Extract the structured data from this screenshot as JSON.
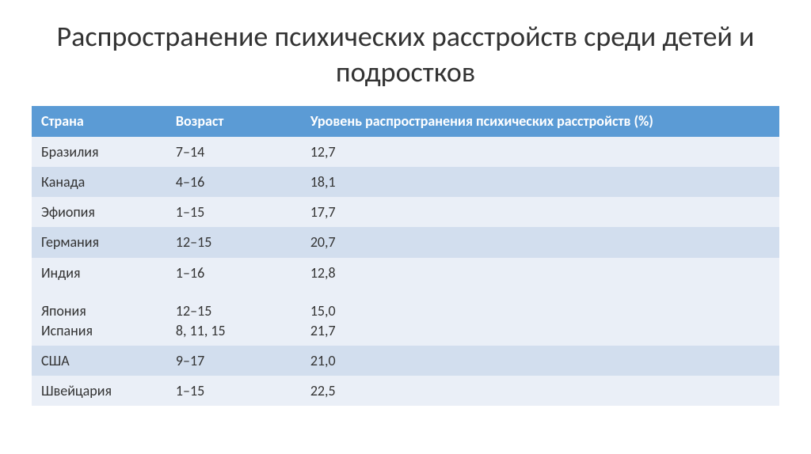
{
  "title": "Распространение психических расстройств среди детей и подростков",
  "table": {
    "header_bg": "#5b9bd5",
    "header_fg": "#ffffff",
    "row_odd_bg": "#eaeff7",
    "row_even_bg": "#d2deee",
    "columns": [
      "Страна",
      "Возраст",
      "Уровень распространения психических расстройств (%)"
    ],
    "rows": [
      {
        "country": "Бразилия",
        "age": "7–14",
        "rate": "12,7"
      },
      {
        "country": "Канада",
        "age": "4–16",
        "rate": "18,1"
      },
      {
        "country": "Эфиопия",
        "age": "1–15",
        "rate": "17,7"
      },
      {
        "country": "Германия",
        "age": "12–15",
        "rate": "20,7"
      },
      {
        "country": "Индия\n\nЯпония\nИспания",
        "age": "1–16\n\n12–15\n8, 11, 15",
        "rate": "12,8\n\n15,0\n21,7"
      },
      {
        "country": "США",
        "age": "9–17",
        "rate": "21,0"
      },
      {
        "country": "Швейцария",
        "age": "1–15",
        "rate": "22,5"
      }
    ]
  }
}
